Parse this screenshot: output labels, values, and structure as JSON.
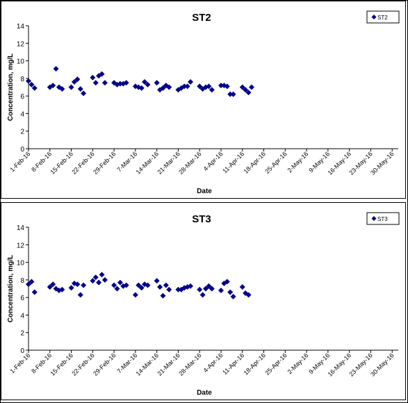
{
  "chart_data": [
    {
      "type": "scatter",
      "title": "ST2",
      "xlabel": "Date",
      "ylabel": "Concentration, mg/L",
      "ylim": [
        0,
        14
      ],
      "yticks": [
        0,
        2,
        4,
        6,
        8,
        10,
        12,
        14
      ],
      "xlim": [
        "2016-02-01",
        "2016-06-01"
      ],
      "xtick_labels": [
        "1-Feb-16",
        "8-Feb-16",
        "15-Feb-16",
        "22-Feb-16",
        "29-Feb-16",
        "7-Mar-16",
        "14-Mar-16",
        "21-Mar-16",
        "28-Mar-16",
        "4-Apr-16",
        "11-Apr-16",
        "18-Apr-16",
        "25-Apr-16",
        "2-May-16",
        "9-May-16",
        "16-May-16",
        "23-May-16",
        "30-May-16"
      ],
      "legend_position": "top-right",
      "marker_color": "#00008B",
      "series": [
        {
          "name": "ST2",
          "points": [
            [
              "2016-02-01",
              7.7
            ],
            [
              "2016-02-02",
              7.3
            ],
            [
              "2016-02-03",
              6.9
            ],
            [
              "2016-02-08",
              7.0
            ],
            [
              "2016-02-09",
              7.2
            ],
            [
              "2016-02-10",
              9.1
            ],
            [
              "2016-02-11",
              7.0
            ],
            [
              "2016-02-12",
              6.8
            ],
            [
              "2016-02-15",
              7.0
            ],
            [
              "2016-02-16",
              7.6
            ],
            [
              "2016-02-17",
              7.9
            ],
            [
              "2016-02-18",
              6.8
            ],
            [
              "2016-02-19",
              6.3
            ],
            [
              "2016-02-22",
              8.1
            ],
            [
              "2016-02-23",
              7.5
            ],
            [
              "2016-02-24",
              8.3
            ],
            [
              "2016-02-25",
              8.5
            ],
            [
              "2016-02-26",
              7.5
            ],
            [
              "2016-02-29",
              7.5
            ],
            [
              "2016-03-01",
              7.3
            ],
            [
              "2016-03-02",
              7.4
            ],
            [
              "2016-03-03",
              7.4
            ],
            [
              "2016-03-04",
              7.5
            ],
            [
              "2016-03-07",
              7.1
            ],
            [
              "2016-03-08",
              7.0
            ],
            [
              "2016-03-09",
              6.9
            ],
            [
              "2016-03-10",
              7.6
            ],
            [
              "2016-03-11",
              7.3
            ],
            [
              "2016-03-14",
              7.5
            ],
            [
              "2016-03-15",
              6.7
            ],
            [
              "2016-03-16",
              6.9
            ],
            [
              "2016-03-17",
              7.2
            ],
            [
              "2016-03-18",
              7.0
            ],
            [
              "2016-03-21",
              6.7
            ],
            [
              "2016-03-22",
              6.9
            ],
            [
              "2016-03-23",
              7.1
            ],
            [
              "2016-03-24",
              7.1
            ],
            [
              "2016-03-25",
              7.6
            ],
            [
              "2016-03-28",
              7.1
            ],
            [
              "2016-03-29",
              6.8
            ],
            [
              "2016-03-30",
              7.0
            ],
            [
              "2016-03-31",
              7.1
            ],
            [
              "2016-04-01",
              6.7
            ],
            [
              "2016-04-04",
              7.2
            ],
            [
              "2016-04-05",
              7.2
            ],
            [
              "2016-04-06",
              7.1
            ],
            [
              "2016-04-07",
              6.2
            ],
            [
              "2016-04-08",
              6.2
            ],
            [
              "2016-04-11",
              7.0
            ],
            [
              "2016-04-12",
              6.7
            ],
            [
              "2016-04-13",
              6.4
            ],
            [
              "2016-04-14",
              7.0
            ]
          ]
        }
      ]
    },
    {
      "type": "scatter",
      "title": "ST3",
      "xlabel": "Date",
      "ylabel": "Concentration, mg/L",
      "ylim": [
        0,
        14
      ],
      "yticks": [
        0,
        2,
        4,
        6,
        8,
        10,
        12,
        14
      ],
      "xlim": [
        "2016-02-01",
        "2016-06-01"
      ],
      "xtick_labels": [
        "1-Feb-16",
        "8-Feb-16",
        "15-Feb-16",
        "22-Feb-16",
        "29-Feb-16",
        "7-Mar-16",
        "14-Mar-16",
        "21-Mar-16",
        "28-Mar-16",
        "4-Apr-16",
        "11-Apr-16",
        "18-Apr-16",
        "25-Apr-16",
        "2-May-16",
        "9-May-16",
        "16-May-16",
        "23-May-16",
        "30-May-16"
      ],
      "legend_position": "top-right",
      "marker_color": "#00008B",
      "series": [
        {
          "name": "ST3",
          "points": [
            [
              "2016-02-01",
              7.5
            ],
            [
              "2016-02-02",
              7.8
            ],
            [
              "2016-02-03",
              6.6
            ],
            [
              "2016-02-08",
              7.2
            ],
            [
              "2016-02-09",
              7.5
            ],
            [
              "2016-02-10",
              7.0
            ],
            [
              "2016-02-11",
              6.8
            ],
            [
              "2016-02-12",
              6.9
            ],
            [
              "2016-02-15",
              7.1
            ],
            [
              "2016-02-16",
              7.6
            ],
            [
              "2016-02-17",
              7.5
            ],
            [
              "2016-02-18",
              6.3
            ],
            [
              "2016-02-19",
              7.4
            ],
            [
              "2016-02-22",
              7.9
            ],
            [
              "2016-02-23",
              8.3
            ],
            [
              "2016-02-24",
              7.7
            ],
            [
              "2016-02-25",
              8.6
            ],
            [
              "2016-02-26",
              8.0
            ],
            [
              "2016-02-29",
              7.4
            ],
            [
              "2016-03-01",
              7.0
            ],
            [
              "2016-03-02",
              7.7
            ],
            [
              "2016-03-03",
              7.3
            ],
            [
              "2016-03-04",
              7.4
            ],
            [
              "2016-03-07",
              6.3
            ],
            [
              "2016-03-08",
              7.4
            ],
            [
              "2016-03-09",
              7.1
            ],
            [
              "2016-03-10",
              7.5
            ],
            [
              "2016-03-11",
              7.4
            ],
            [
              "2016-03-14",
              7.9
            ],
            [
              "2016-03-15",
              7.2
            ],
            [
              "2016-03-16",
              6.2
            ],
            [
              "2016-03-17",
              7.4
            ],
            [
              "2016-03-18",
              6.9
            ],
            [
              "2016-03-21",
              6.9
            ],
            [
              "2016-03-22",
              6.9
            ],
            [
              "2016-03-23",
              7.1
            ],
            [
              "2016-03-24",
              7.2
            ],
            [
              "2016-03-25",
              7.3
            ],
            [
              "2016-03-28",
              6.9
            ],
            [
              "2016-03-29",
              6.3
            ],
            [
              "2016-03-30",
              7.0
            ],
            [
              "2016-03-31",
              7.3
            ],
            [
              "2016-04-01",
              7.0
            ],
            [
              "2016-04-04",
              6.8
            ],
            [
              "2016-04-05",
              7.6
            ],
            [
              "2016-04-06",
              7.8
            ],
            [
              "2016-04-07",
              6.6
            ],
            [
              "2016-04-08",
              6.1
            ],
            [
              "2016-04-11",
              7.2
            ],
            [
              "2016-04-12",
              6.5
            ],
            [
              "2016-04-13",
              6.3
            ]
          ]
        }
      ]
    }
  ]
}
